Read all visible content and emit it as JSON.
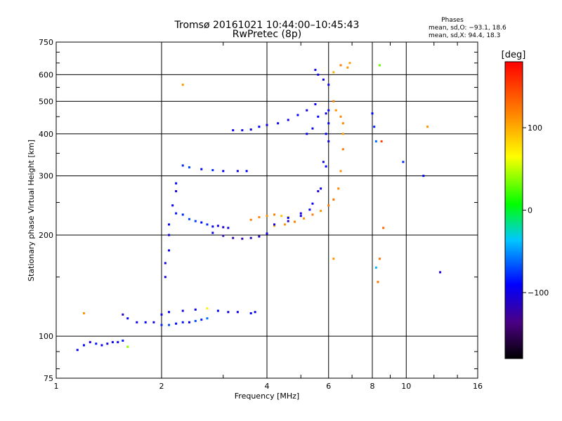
{
  "chart_data": {
    "type": "scatter",
    "title": "Tromsø 20161021 10:44:00–10:45:43",
    "subtitle": "RwPretec (8p)",
    "xlabel": "Frequency [MHz]",
    "ylabel": "Stationary phase Virtual Height [km]",
    "x_scale": "log",
    "y_scale": "log",
    "xlim": [
      1,
      16
    ],
    "ylim": [
      75,
      750
    ],
    "xticks": [
      1,
      2,
      4,
      6,
      8,
      10,
      16
    ],
    "xtick_labels": [
      "1",
      "2",
      "4",
      "6",
      "8",
      "10",
      "16"
    ],
    "yticks": [
      75,
      100,
      200,
      300,
      400,
      500,
      600,
      750
    ],
    "ytick_labels": [
      "75",
      "100",
      "200",
      "300",
      "400",
      "500",
      "600",
      "750"
    ],
    "grid": true,
    "stats": {
      "heading": "Phases",
      "line_o": "mean, sd,O: −93.1, 18.6",
      "line_x": "mean, sd,X:  94.4, 18.3"
    },
    "colorbar": {
      "label": "[deg]",
      "range": [
        -180,
        180
      ],
      "ticks": [
        100,
        0,
        -100
      ],
      "tick_labels": [
        "100",
        "0",
        "−100"
      ]
    },
    "series": [
      {
        "points": [
          [
            1.15,
            91,
            -95
          ],
          [
            1.2,
            94,
            -90
          ],
          [
            1.25,
            96,
            -100
          ],
          [
            1.3,
            95,
            -85
          ],
          [
            1.35,
            94,
            -95
          ],
          [
            1.4,
            95,
            -100
          ],
          [
            1.45,
            96,
            -90
          ],
          [
            1.5,
            96,
            -95
          ],
          [
            1.55,
            97,
            -85
          ],
          [
            1.6,
            93,
            40
          ],
          [
            1.2,
            117,
            110
          ],
          [
            1.55,
            116,
            -110
          ],
          [
            1.6,
            113,
            -95
          ],
          [
            1.7,
            110,
            -100
          ],
          [
            1.8,
            110,
            -90
          ],
          [
            1.9,
            110,
            -100
          ],
          [
            2.0,
            108,
            -80
          ],
          [
            2.1,
            108,
            -70
          ],
          [
            2.2,
            109,
            -90
          ],
          [
            2.3,
            110,
            -85
          ],
          [
            2.4,
            110,
            -95
          ],
          [
            2.5,
            111,
            -70
          ],
          [
            2.6,
            112,
            -80
          ],
          [
            2.7,
            113,
            -60
          ],
          [
            2.0,
            116,
            -100
          ],
          [
            2.1,
            118,
            -90
          ],
          [
            2.3,
            119,
            -100
          ],
          [
            2.5,
            120,
            -95
          ],
          [
            2.7,
            121,
            70
          ],
          [
            2.9,
            119,
            -90
          ],
          [
            3.1,
            118,
            -100
          ],
          [
            3.3,
            118,
            -95
          ],
          [
            3.6,
            117,
            -90
          ],
          [
            3.7,
            118,
            -100
          ],
          [
            2.05,
            150,
            -100
          ],
          [
            2.05,
            165,
            -95
          ],
          [
            2.1,
            180,
            -90
          ],
          [
            2.1,
            200,
            -100
          ],
          [
            2.1,
            215,
            -90
          ],
          [
            2.15,
            245,
            -95
          ],
          [
            2.2,
            270,
            -100
          ],
          [
            2.2,
            285,
            -90
          ],
          [
            2.2,
            232,
            -85
          ],
          [
            2.3,
            230,
            -80
          ],
          [
            2.4,
            223,
            -70
          ],
          [
            2.5,
            220,
            -75
          ],
          [
            2.6,
            218,
            -90
          ],
          [
            2.7,
            215,
            -80
          ],
          [
            2.8,
            212,
            -95
          ],
          [
            2.9,
            213,
            -100
          ],
          [
            3.0,
            211,
            -110
          ],
          [
            3.1,
            210,
            -100
          ],
          [
            2.8,
            203,
            -100
          ],
          [
            3.0,
            199,
            -120
          ],
          [
            3.2,
            196,
            -120
          ],
          [
            3.4,
            195,
            -120
          ],
          [
            3.6,
            196,
            -115
          ],
          [
            3.8,
            198,
            -110
          ],
          [
            4.0,
            202,
            -100
          ],
          [
            3.6,
            222,
            120
          ],
          [
            3.8,
            226,
            115
          ],
          [
            4.0,
            228,
            110
          ],
          [
            4.2,
            230,
            120
          ],
          [
            4.4,
            228,
            90
          ],
          [
            4.6,
            226,
            80
          ],
          [
            4.2,
            213,
            100
          ],
          [
            4.5,
            215,
            110
          ],
          [
            4.8,
            219,
            120
          ],
          [
            5.1,
            224,
            110
          ],
          [
            5.4,
            230,
            120
          ],
          [
            5.7,
            236,
            110
          ],
          [
            6.0,
            245,
            120
          ],
          [
            6.2,
            255,
            125
          ],
          [
            6.4,
            275,
            115
          ],
          [
            6.5,
            310,
            110
          ],
          [
            6.6,
            360,
            120
          ],
          [
            6.6,
            400,
            105
          ],
          [
            6.6,
            430,
            115
          ],
          [
            4.6,
            225,
            -90
          ],
          [
            5.0,
            232,
            -100
          ],
          [
            5.4,
            248,
            -95
          ],
          [
            5.7,
            275,
            -100
          ],
          [
            5.9,
            320,
            -90
          ],
          [
            6.0,
            380,
            -100
          ],
          [
            6.0,
            430,
            -95
          ],
          [
            6.0,
            470,
            -90
          ],
          [
            4.2,
            215,
            -100
          ],
          [
            4.6,
            220,
            -110
          ],
          [
            5.0,
            228,
            -100
          ],
          [
            5.3,
            238,
            -95
          ],
          [
            5.6,
            270,
            -105
          ],
          [
            5.8,
            330,
            -100
          ],
          [
            5.9,
            400,
            -95
          ],
          [
            5.9,
            460,
            -100
          ],
          [
            2.3,
            322,
            -80
          ],
          [
            2.4,
            318,
            -70
          ],
          [
            2.6,
            314,
            -90
          ],
          [
            2.8,
            312,
            -80
          ],
          [
            3.0,
            310,
            -90
          ],
          [
            3.3,
            310,
            -100
          ],
          [
            3.5,
            310,
            -90
          ],
          [
            3.2,
            410,
            -95
          ],
          [
            3.4,
            410,
            -100
          ],
          [
            3.6,
            412,
            -95
          ],
          [
            3.8,
            420,
            -90
          ],
          [
            4.0,
            425,
            -100
          ],
          [
            4.3,
            430,
            -95
          ],
          [
            4.6,
            440,
            -100
          ],
          [
            4.9,
            455,
            -95
          ],
          [
            5.2,
            470,
            -100
          ],
          [
            5.5,
            490,
            -95
          ],
          [
            5.6,
            450,
            -90
          ],
          [
            5.4,
            415,
            -100
          ],
          [
            5.2,
            400,
            -90
          ],
          [
            5.5,
            620,
            -100
          ],
          [
            5.6,
            600,
            -95
          ],
          [
            5.8,
            580,
            -100
          ],
          [
            6.0,
            560,
            -90
          ],
          [
            6.2,
            610,
            100
          ],
          [
            6.5,
            640,
            120
          ],
          [
            6.8,
            630,
            110
          ],
          [
            6.9,
            650,
            105
          ],
          [
            6.2,
            500,
            120
          ],
          [
            6.3,
            470,
            110
          ],
          [
            6.5,
            450,
            115
          ],
          [
            8.0,
            460,
            -90
          ],
          [
            8.1,
            420,
            -80
          ],
          [
            8.2,
            380,
            -60
          ],
          [
            8.5,
            380,
            150
          ],
          [
            8.6,
            210,
            130
          ],
          [
            8.4,
            170,
            125
          ],
          [
            8.3,
            145,
            125
          ],
          [
            9.8,
            330,
            -80
          ],
          [
            11.5,
            420,
            110
          ],
          [
            11.2,
            300,
            -90
          ],
          [
            12.5,
            155,
            -110
          ],
          [
            8.4,
            640,
            30
          ],
          [
            2.3,
            560,
            110
          ],
          [
            6.2,
            170,
            110
          ],
          [
            8.2,
            160,
            -40
          ]
        ]
      }
    ]
  }
}
